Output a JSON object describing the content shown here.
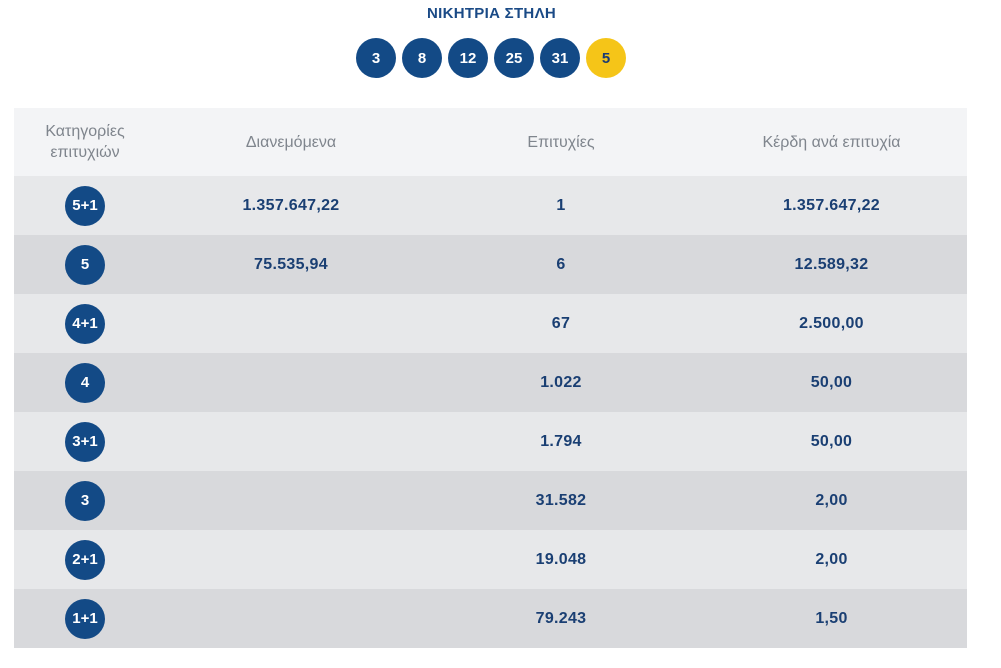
{
  "header": {
    "title": "ΝΙΚΗΤΡΙΑ ΣΤΗΛΗ"
  },
  "winning_numbers": [
    "3",
    "8",
    "12",
    "25",
    "31"
  ],
  "joker_number": "5",
  "colors": {
    "ball": "#134a86",
    "joker": "#f5c518",
    "text_value": "#1a3f73"
  },
  "table": {
    "columns": [
      "Κατηγορίες επιτυχιών",
      "Διανεμόμενα",
      "Επιτυχίες",
      "Κέρδη ανά επιτυχία"
    ],
    "rows": [
      {
        "category": "5+1",
        "distributed": "1.357.647,22",
        "winners": "1",
        "prize": "1.357.647,22"
      },
      {
        "category": "5",
        "distributed": "75.535,94",
        "winners": "6",
        "prize": "12.589,32"
      },
      {
        "category": "4+1",
        "distributed": "",
        "winners": "67",
        "prize": "2.500,00"
      },
      {
        "category": "4",
        "distributed": "",
        "winners": "1.022",
        "prize": "50,00"
      },
      {
        "category": "3+1",
        "distributed": "",
        "winners": "1.794",
        "prize": "50,00"
      },
      {
        "category": "3",
        "distributed": "",
        "winners": "31.582",
        "prize": "2,00"
      },
      {
        "category": "2+1",
        "distributed": "",
        "winners": "19.048",
        "prize": "2,00"
      },
      {
        "category": "1+1",
        "distributed": "",
        "winners": "79.243",
        "prize": "1,50"
      }
    ]
  }
}
